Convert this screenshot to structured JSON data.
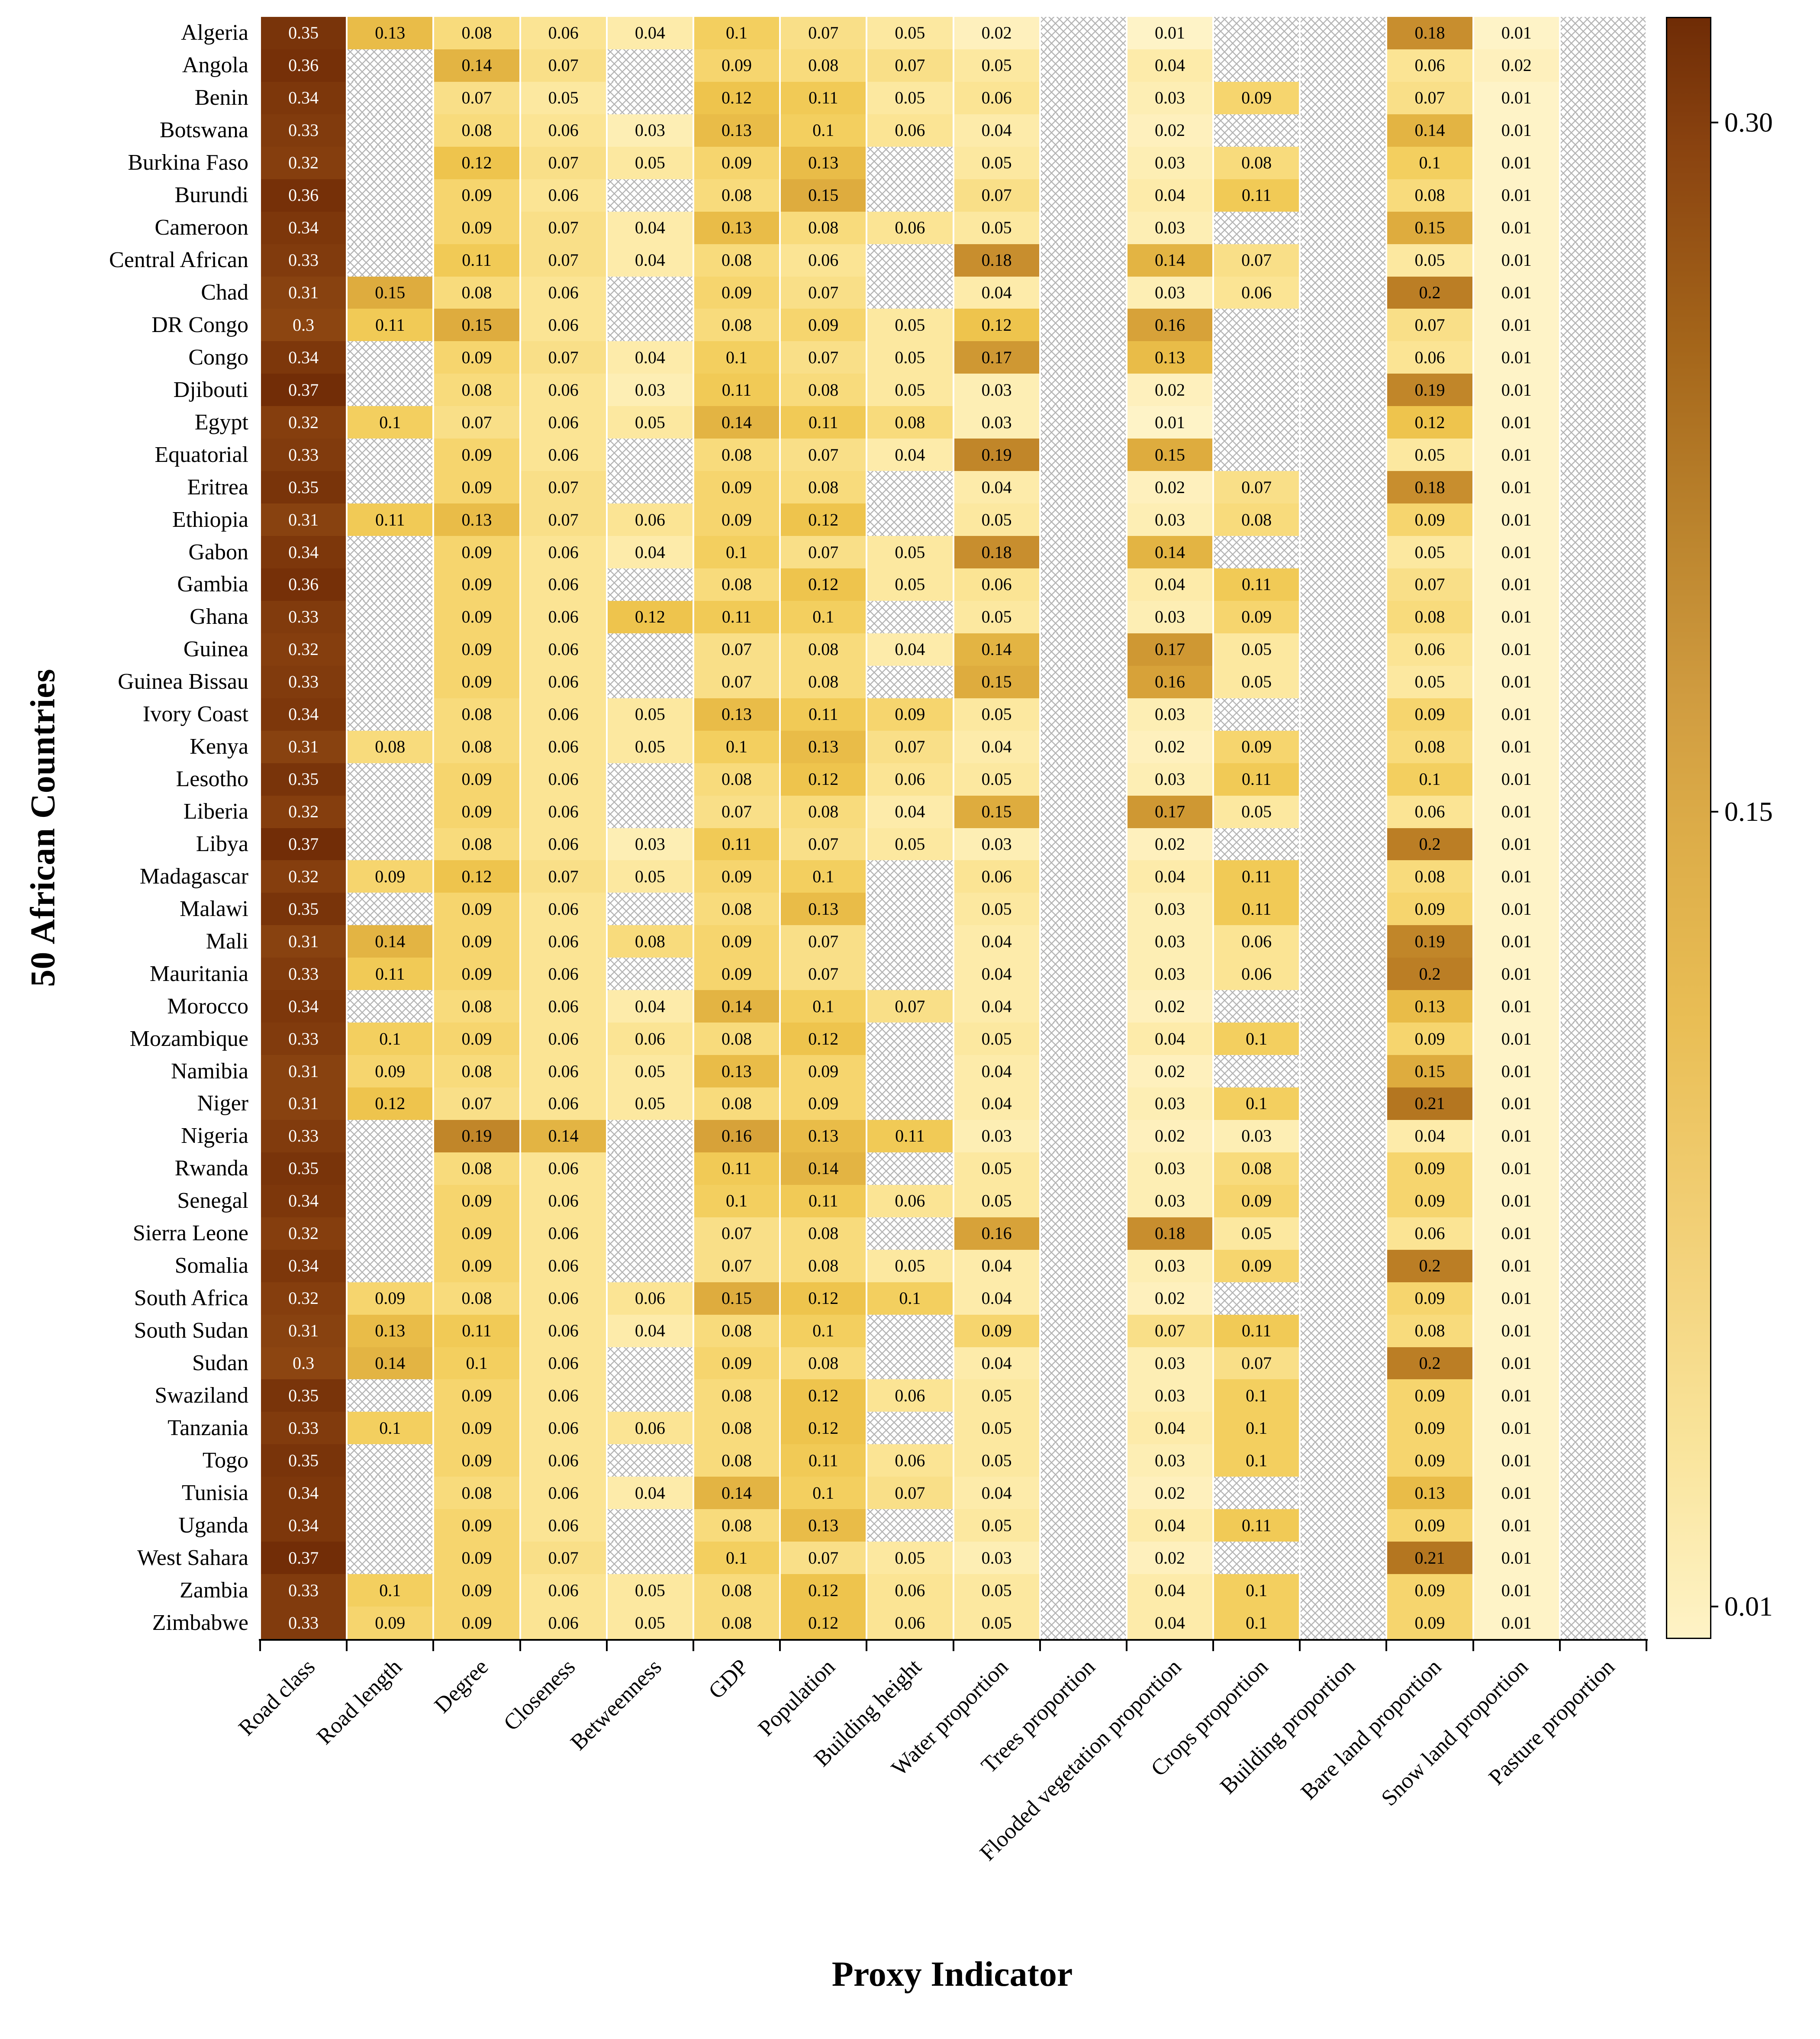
{
  "figure": {
    "xlabel": "Proxy Indicator",
    "ylabel": "50 African Countries"
  },
  "colors": {
    "colormap_min": "#FEF3C7",
    "colormap_mid": "#DCAC48",
    "colormap_max": "#722D07",
    "missing_hatch": "#B5B5B5",
    "dark_cell_text": "#FFFFFF",
    "light_cell_text": "#000000"
  },
  "chart_data": {
    "type": "heatmap",
    "title": "",
    "xlabel": "Proxy Indicator",
    "ylabel": "50 African Countries",
    "missing_cells_style": "gray crosshatch = no data",
    "colorbar": {
      "orientation": "vertical",
      "position": "right",
      "tick_labels": [
        "0.30",
        "0.15",
        "0.01"
      ],
      "range_note": "light cream ~0.01 to dark brown ~0.30+"
    },
    "columns": [
      "Road class",
      "Road length",
      "Degree",
      "Closeness",
      "Betweenness",
      "GDP",
      "Population",
      "Building height",
      "Water proportion",
      "Trees proportion",
      "Flooded vegetation proportion",
      "Crops proportion",
      "Building proportion",
      "Bare land proportion",
      "Snow land proportion",
      "Pasture proportion"
    ],
    "countries": [
      "Algeria",
      "Angola",
      "Benin",
      "Botswana",
      "Burkina Faso",
      "Burundi",
      "Cameroon",
      "Central African",
      "Chad",
      "DR Congo",
      "Congo",
      "Djibouti",
      "Egypt",
      "Equatorial",
      "Eritrea",
      "Ethiopia",
      "Gabon",
      "Gambia",
      "Ghana",
      "Guinea",
      "Guinea Bissau",
      "Ivory Coast",
      "Kenya",
      "Lesotho",
      "Liberia",
      "Libya",
      "Madagascar",
      "Malawi",
      "Mali",
      "Mauritania",
      "Morocco",
      "Mozambique",
      "Namibia",
      "Niger",
      "Nigeria",
      "Rwanda",
      "Senegal",
      "Sierra Leone",
      "Somalia",
      "South Africa",
      "South Sudan",
      "Sudan",
      "Swaziland",
      "Tanzania",
      "Togo",
      "Tunisia",
      "Uganda",
      "West Sahara",
      "Zambia",
      "Zimbabwe"
    ],
    "values": [
      [
        0.35,
        0.13,
        0.08,
        0.06,
        0.04,
        0.1,
        0.07,
        0.05,
        0.02,
        null,
        0.01,
        null,
        null,
        0.18,
        0.01,
        null
      ],
      [
        0.36,
        null,
        0.14,
        0.07,
        null,
        0.09,
        0.08,
        0.07,
        0.05,
        null,
        0.04,
        null,
        null,
        0.06,
        0.02,
        null
      ],
      [
        0.34,
        null,
        0.07,
        0.05,
        null,
        0.12,
        0.11,
        0.05,
        0.06,
        null,
        0.03,
        0.09,
        null,
        0.07,
        0.01,
        null
      ],
      [
        0.33,
        null,
        0.08,
        0.06,
        0.03,
        0.13,
        0.1,
        0.06,
        0.04,
        null,
        0.02,
        null,
        null,
        0.14,
        0.01,
        null
      ],
      [
        0.32,
        null,
        0.12,
        0.07,
        0.05,
        0.09,
        0.13,
        null,
        0.05,
        null,
        0.03,
        0.08,
        null,
        0.1,
        0.01,
        null
      ],
      [
        0.36,
        null,
        0.09,
        0.06,
        null,
        0.08,
        0.15,
        null,
        0.07,
        null,
        0.04,
        0.11,
        null,
        0.08,
        0.01,
        null
      ],
      [
        0.34,
        null,
        0.09,
        0.07,
        0.04,
        0.13,
        0.08,
        0.06,
        0.05,
        null,
        0.03,
        null,
        null,
        0.15,
        0.01,
        null
      ],
      [
        0.33,
        null,
        0.11,
        0.07,
        0.04,
        0.08,
        0.06,
        null,
        0.18,
        null,
        0.14,
        0.07,
        null,
        0.05,
        0.01,
        null
      ],
      [
        0.31,
        0.15,
        0.08,
        0.06,
        null,
        0.09,
        0.07,
        null,
        0.04,
        null,
        0.03,
        0.06,
        null,
        0.2,
        0.01,
        null
      ],
      [
        0.3,
        0.11,
        0.15,
        0.06,
        null,
        0.08,
        0.09,
        0.05,
        0.12,
        null,
        0.16,
        null,
        null,
        0.07,
        0.01,
        null
      ],
      [
        0.34,
        null,
        0.09,
        0.07,
        0.04,
        0.1,
        0.07,
        0.05,
        0.17,
        null,
        0.13,
        null,
        null,
        0.06,
        0.01,
        null
      ],
      [
        0.37,
        null,
        0.08,
        0.06,
        0.03,
        0.11,
        0.08,
        0.05,
        0.03,
        null,
        0.02,
        null,
        null,
        0.19,
        0.01,
        null
      ],
      [
        0.32,
        0.1,
        0.07,
        0.06,
        0.05,
        0.14,
        0.11,
        0.08,
        0.03,
        null,
        0.01,
        null,
        null,
        0.12,
        0.01,
        null
      ],
      [
        0.33,
        null,
        0.09,
        0.06,
        null,
        0.08,
        0.07,
        0.04,
        0.19,
        null,
        0.15,
        null,
        null,
        0.05,
        0.01,
        null
      ],
      [
        0.35,
        null,
        0.09,
        0.07,
        null,
        0.09,
        0.08,
        null,
        0.04,
        null,
        0.02,
        0.07,
        null,
        0.18,
        0.01,
        null
      ],
      [
        0.31,
        0.11,
        0.13,
        0.07,
        0.06,
        0.09,
        0.12,
        null,
        0.05,
        null,
        0.03,
        0.08,
        null,
        0.09,
        0.01,
        null
      ],
      [
        0.34,
        null,
        0.09,
        0.06,
        0.04,
        0.1,
        0.07,
        0.05,
        0.18,
        null,
        0.14,
        null,
        null,
        0.05,
        0.01,
        null
      ],
      [
        0.36,
        null,
        0.09,
        0.06,
        null,
        0.08,
        0.12,
        0.05,
        0.06,
        null,
        0.04,
        0.11,
        null,
        0.07,
        0.01,
        null
      ],
      [
        0.33,
        null,
        0.09,
        0.06,
        0.12,
        0.11,
        0.1,
        null,
        0.05,
        null,
        0.03,
        0.09,
        null,
        0.08,
        0.01,
        null
      ],
      [
        0.32,
        null,
        0.09,
        0.06,
        null,
        0.07,
        0.08,
        0.04,
        0.14,
        null,
        0.17,
        0.05,
        null,
        0.06,
        0.01,
        null
      ],
      [
        0.33,
        null,
        0.09,
        0.06,
        null,
        0.07,
        0.08,
        null,
        0.15,
        null,
        0.16,
        0.05,
        null,
        0.05,
        0.01,
        null
      ],
      [
        0.34,
        null,
        0.08,
        0.06,
        0.05,
        0.13,
        0.11,
        0.09,
        0.05,
        null,
        0.03,
        null,
        null,
        0.09,
        0.01,
        null
      ],
      [
        0.31,
        0.08,
        0.08,
        0.06,
        0.05,
        0.1,
        0.13,
        0.07,
        0.04,
        null,
        0.02,
        0.09,
        null,
        0.08,
        0.01,
        null
      ],
      [
        0.35,
        null,
        0.09,
        0.06,
        null,
        0.08,
        0.12,
        0.06,
        0.05,
        null,
        0.03,
        0.11,
        null,
        0.1,
        0.01,
        null
      ],
      [
        0.32,
        null,
        0.09,
        0.06,
        null,
        0.07,
        0.08,
        0.04,
        0.15,
        null,
        0.17,
        0.05,
        null,
        0.06,
        0.01,
        null
      ],
      [
        0.37,
        null,
        0.08,
        0.06,
        0.03,
        0.11,
        0.07,
        0.05,
        0.03,
        null,
        0.02,
        null,
        null,
        0.2,
        0.01,
        null
      ],
      [
        0.32,
        0.09,
        0.12,
        0.07,
        0.05,
        0.09,
        0.1,
        null,
        0.06,
        null,
        0.04,
        0.11,
        null,
        0.08,
        0.01,
        null
      ],
      [
        0.35,
        null,
        0.09,
        0.06,
        null,
        0.08,
        0.13,
        null,
        0.05,
        null,
        0.03,
        0.11,
        null,
        0.09,
        0.01,
        null
      ],
      [
        0.31,
        0.14,
        0.09,
        0.06,
        0.08,
        0.09,
        0.07,
        null,
        0.04,
        null,
        0.03,
        0.06,
        null,
        0.19,
        0.01,
        null
      ],
      [
        0.33,
        0.11,
        0.09,
        0.06,
        null,
        0.09,
        0.07,
        null,
        0.04,
        null,
        0.03,
        0.06,
        null,
        0.2,
        0.01,
        null
      ],
      [
        0.34,
        null,
        0.08,
        0.06,
        0.04,
        0.14,
        0.1,
        0.07,
        0.04,
        null,
        0.02,
        null,
        null,
        0.13,
        0.01,
        null
      ],
      [
        0.33,
        0.1,
        0.09,
        0.06,
        0.06,
        0.08,
        0.12,
        null,
        0.05,
        null,
        0.04,
        0.1,
        null,
        0.09,
        0.01,
        null
      ],
      [
        0.31,
        0.09,
        0.08,
        0.06,
        0.05,
        0.13,
        0.09,
        null,
        0.04,
        null,
        0.02,
        null,
        null,
        0.15,
        0.01,
        null
      ],
      [
        0.31,
        0.12,
        0.07,
        0.06,
        0.05,
        0.08,
        0.09,
        null,
        0.04,
        null,
        0.03,
        0.1,
        null,
        0.21,
        0.01,
        null
      ],
      [
        0.33,
        null,
        0.19,
        0.14,
        null,
        0.16,
        0.13,
        0.11,
        0.03,
        null,
        0.02,
        0.03,
        null,
        0.04,
        0.01,
        null
      ],
      [
        0.35,
        null,
        0.08,
        0.06,
        null,
        0.11,
        0.14,
        null,
        0.05,
        null,
        0.03,
        0.08,
        null,
        0.09,
        0.01,
        null
      ],
      [
        0.34,
        null,
        0.09,
        0.06,
        null,
        0.1,
        0.11,
        0.06,
        0.05,
        null,
        0.03,
        0.09,
        null,
        0.09,
        0.01,
        null
      ],
      [
        0.32,
        null,
        0.09,
        0.06,
        null,
        0.07,
        0.08,
        null,
        0.16,
        null,
        0.18,
        0.05,
        null,
        0.06,
        0.01,
        null
      ],
      [
        0.34,
        null,
        0.09,
        0.06,
        null,
        0.07,
        0.08,
        0.05,
        0.04,
        null,
        0.03,
        0.09,
        null,
        0.2,
        0.01,
        null
      ],
      [
        0.32,
        0.09,
        0.08,
        0.06,
        0.06,
        0.15,
        0.12,
        0.1,
        0.04,
        null,
        0.02,
        null,
        null,
        0.09,
        0.01,
        null
      ],
      [
        0.31,
        0.13,
        0.11,
        0.06,
        0.04,
        0.08,
        0.1,
        null,
        0.09,
        null,
        0.07,
        0.11,
        null,
        0.08,
        0.01,
        null
      ],
      [
        0.3,
        0.14,
        0.1,
        0.06,
        null,
        0.09,
        0.08,
        null,
        0.04,
        null,
        0.03,
        0.07,
        null,
        0.2,
        0.01,
        null
      ],
      [
        0.35,
        null,
        0.09,
        0.06,
        null,
        0.08,
        0.12,
        0.06,
        0.05,
        null,
        0.03,
        0.1,
        null,
        0.09,
        0.01,
        null
      ],
      [
        0.33,
        0.1,
        0.09,
        0.06,
        0.06,
        0.08,
        0.12,
        null,
        0.05,
        null,
        0.04,
        0.1,
        null,
        0.09,
        0.01,
        null
      ],
      [
        0.35,
        null,
        0.09,
        0.06,
        null,
        0.08,
        0.11,
        0.06,
        0.05,
        null,
        0.03,
        0.1,
        null,
        0.09,
        0.01,
        null
      ],
      [
        0.34,
        null,
        0.08,
        0.06,
        0.04,
        0.14,
        0.1,
        0.07,
        0.04,
        null,
        0.02,
        null,
        null,
        0.13,
        0.01,
        null
      ],
      [
        0.34,
        null,
        0.09,
        0.06,
        null,
        0.08,
        0.13,
        null,
        0.05,
        null,
        0.04,
        0.11,
        null,
        0.09,
        0.01,
        null
      ],
      [
        0.37,
        null,
        0.09,
        0.07,
        null,
        0.1,
        0.07,
        0.05,
        0.03,
        null,
        0.02,
        null,
        null,
        0.21,
        0.01,
        null
      ],
      [
        0.33,
        0.1,
        0.09,
        0.06,
        0.05,
        0.08,
        0.12,
        0.06,
        0.05,
        null,
        0.04,
        0.1,
        null,
        0.09,
        0.01,
        null
      ],
      [
        0.33,
        0.09,
        0.09,
        0.06,
        0.05,
        0.08,
        0.12,
        0.06,
        0.05,
        null,
        0.04,
        0.1,
        null,
        0.09,
        0.01,
        null
      ]
    ]
  }
}
